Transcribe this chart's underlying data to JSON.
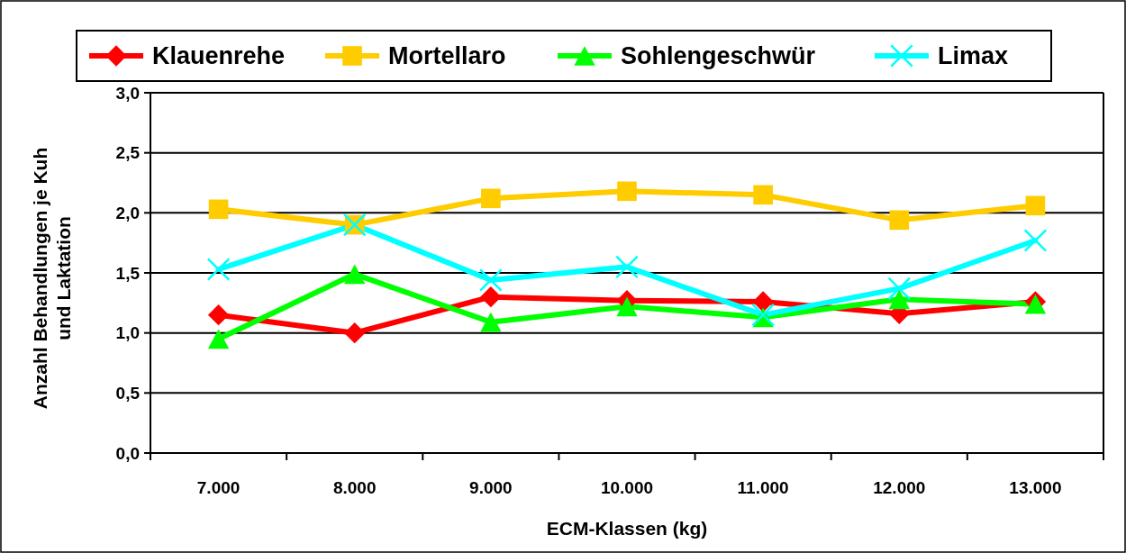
{
  "chart_data": {
    "type": "line",
    "xlabel": "ECM-Klassen (kg)",
    "ylabel": "Anzahl Behandlungen je Kuh und Laktation",
    "categories": [
      "7.000",
      "8.000",
      "9.000",
      "10.000",
      "11.000",
      "12.000",
      "13.000"
    ],
    "series": [
      {
        "name": "Klauenrehe",
        "color": "#ff0000",
        "marker": "diamond",
        "values": [
          1.15,
          1.0,
          1.3,
          1.27,
          1.26,
          1.16,
          1.26
        ]
      },
      {
        "name": "Mortellaro",
        "color": "#ffcc00",
        "marker": "square",
        "values": [
          2.03,
          1.9,
          2.12,
          2.18,
          2.15,
          1.94,
          2.06
        ]
      },
      {
        "name": "Sohlengeschwür",
        "color": "#00ff00",
        "marker": "triangle",
        "values": [
          0.95,
          1.49,
          1.09,
          1.22,
          1.13,
          1.28,
          1.24
        ]
      },
      {
        "name": "Limax",
        "color": "#00ffff",
        "marker": "cross",
        "values": [
          1.53,
          1.9,
          1.44,
          1.55,
          1.15,
          1.37,
          1.77
        ]
      }
    ],
    "ylim": [
      0,
      3
    ],
    "yticks": [
      {
        "value": 0,
        "label": "0,0"
      },
      {
        "value": 0.5,
        "label": "0,5"
      },
      {
        "value": 1,
        "label": "1,0"
      },
      {
        "value": 1.5,
        "label": "1,5"
      },
      {
        "value": 2,
        "label": "2,0"
      },
      {
        "value": 2.5,
        "label": "2,5"
      },
      {
        "value": 3,
        "label": "3,0"
      }
    ],
    "grid": "y",
    "legend": "top",
    "line_style": "solid"
  }
}
